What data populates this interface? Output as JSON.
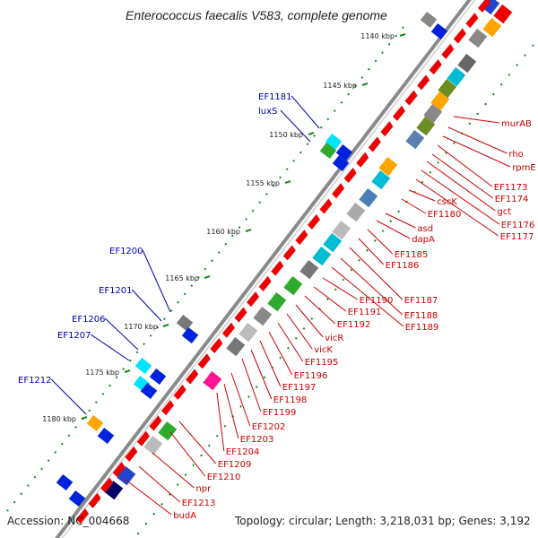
{
  "title": "Enterococcus faecalis V583, complete genome",
  "accession": "Accession: NC_004668",
  "summary": "Topology: circular; Length: 3,218,031 bp; Genes: 3,192",
  "colors": {
    "backbone": "#8a8a8a",
    "kbp_tick": "#1a8a1a",
    "right_label": "#cc0000",
    "left_label": "#0000aa",
    "gene_red": "#ee0000",
    "gene_blue": "#0022dd"
  },
  "kbp_labels": [
    "1140 kbp",
    "1145 kbp",
    "1150 kbp",
    "1155 kbp",
    "1160 kbp",
    "1165 kbp",
    "1170 kbp",
    "1175 kbp",
    "1180 kbp"
  ],
  "right_genes": [
    "murAB",
    "rho",
    "rpmE",
    "EF1173",
    "EF1174",
    "gct",
    "EF1176",
    "EF1177",
    "cscK",
    "EF1180",
    "asd",
    "dapA",
    "EF1185",
    "EF1186",
    "EF1187",
    "EF1188",
    "EF1189",
    "EF1190",
    "EF1191",
    "EF1192",
    "vicR",
    "vicK",
    "EF1195",
    "EF1196",
    "EF1197",
    "EF1198",
    "EF1199",
    "EF1202",
    "EF1203",
    "EF1204",
    "EF1209",
    "EF1210",
    "npr",
    "EF1213",
    "budA"
  ],
  "left_genes": [
    "EF1181",
    "luxS",
    "EF1200",
    "EF1201",
    "EF1206",
    "EF1207",
    "EF1212"
  ]
}
